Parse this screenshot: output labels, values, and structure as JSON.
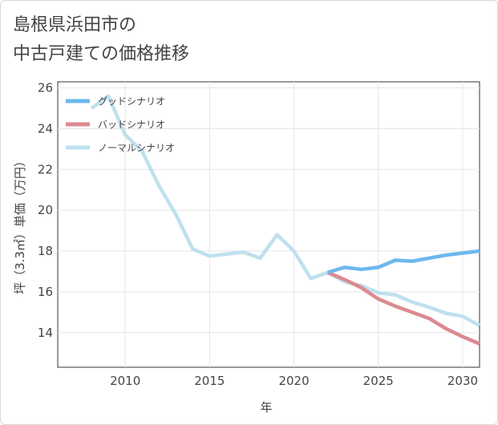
{
  "chart_title": {
    "line1": "島根県浜田市の",
    "line2": "中古戸建ての価格推移"
  },
  "chart_data": {
    "type": "line",
    "title": "島根県浜田市の中古戸建ての価格推移",
    "xlabel": "年",
    "ylabel": "坪（3.3㎡）単価（万円）",
    "xlim": [
      2006,
      2031
    ],
    "ylim": [
      12.3,
      26.3
    ],
    "x_ticks": [
      2010,
      2015,
      2020,
      2025,
      2030
    ],
    "y_ticks": [
      14,
      16,
      18,
      20,
      22,
      24,
      26
    ],
    "legend_position": "top-left",
    "series": [
      {
        "name": "グッドシナリオ",
        "color": "#6cb8ee",
        "x": [
          2022,
          2023,
          2024,
          2025,
          2026,
          2027,
          2028,
          2029,
          2030,
          2031
        ],
        "values": [
          16.95,
          17.2,
          17.1,
          17.2,
          17.55,
          17.5,
          17.65,
          17.8,
          17.9,
          18.0
        ]
      },
      {
        "name": "バッドシナリオ",
        "color": "#db8a8f",
        "x": [
          2022,
          2023,
          2024,
          2025,
          2026,
          2027,
          2028,
          2029,
          2030,
          2031
        ],
        "values": [
          16.95,
          16.6,
          16.2,
          15.65,
          15.3,
          15.0,
          14.7,
          14.2,
          13.8,
          13.45
        ]
      },
      {
        "name": "ノーマルシナリオ",
        "color": "#bfe0ee",
        "x": [
          2008,
          2009,
          2010,
          2011,
          2012,
          2013,
          2014,
          2015,
          2016,
          2017,
          2018,
          2019,
          2020,
          2021,
          2022,
          2023,
          2024,
          2025,
          2026,
          2027,
          2028,
          2029,
          2030,
          2031
        ],
        "values": [
          25.0,
          25.6,
          23.7,
          22.9,
          21.2,
          19.8,
          18.1,
          17.75,
          17.85,
          17.95,
          17.65,
          18.8,
          18.0,
          16.65,
          16.95,
          16.5,
          16.3,
          15.95,
          15.85,
          15.5,
          15.25,
          14.95,
          14.8,
          14.35
        ]
      }
    ]
  }
}
